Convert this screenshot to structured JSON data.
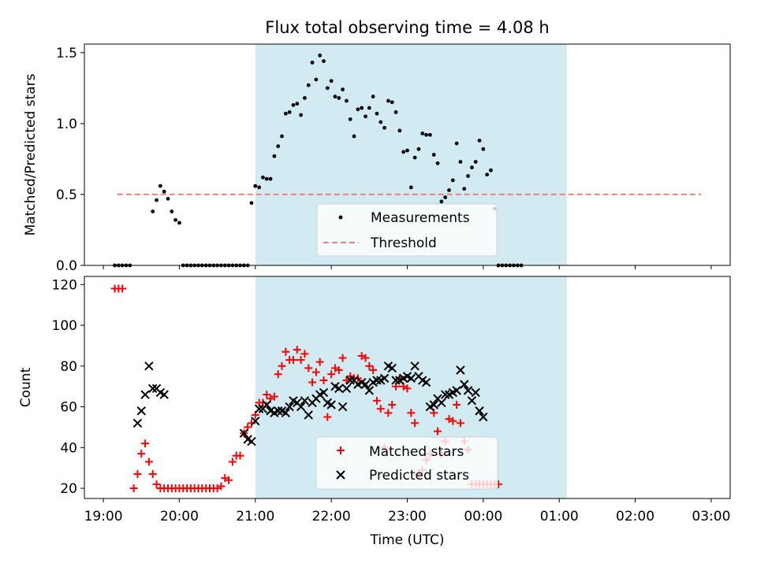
{
  "chart_data": [
    {
      "type": "scatter",
      "title": "Flux total observing time = 4.08 h",
      "xlabel": "",
      "ylabel": "Matched/Predicted stars",
      "ylim": [
        0,
        1.56
      ],
      "yticks": [
        "0.0",
        "0.5",
        "1.0",
        "1.5"
      ],
      "ytick_values": [
        0,
        0.5,
        1.0,
        1.5
      ],
      "shaded_region": {
        "start_min": 120,
        "end_min": 366,
        "color": "#add8e6"
      },
      "legend": {
        "placement": "lower center",
        "entries": [
          "Measurements",
          "Threshold"
        ]
      },
      "threshold": {
        "name": "Threshold",
        "value": 0.5,
        "x_start_min": 11,
        "x_end_min": 472,
        "color": "#f08080"
      },
      "series": [
        {
          "name": "Measurements",
          "color": "#000000",
          "x_min": [
            9,
            12,
            15,
            18,
            21,
            24,
            27,
            30,
            33,
            36,
            39,
            42,
            45,
            48,
            51,
            54,
            57,
            60,
            63,
            66,
            69,
            72,
            75,
            78,
            81,
            84,
            87,
            90,
            93,
            96,
            99,
            102,
            105,
            108,
            111,
            114,
            117,
            120,
            123,
            126,
            129,
            132,
            135,
            138,
            141,
            144,
            147,
            150,
            153,
            156,
            159,
            162,
            165,
            168,
            171,
            174,
            177,
            180,
            183,
            186,
            189,
            192,
            195,
            198,
            201,
            204,
            207,
            210,
            213,
            216,
            219,
            222,
            225,
            228,
            231,
            234,
            237,
            240,
            243,
            246,
            249,
            252,
            255,
            258,
            261,
            264,
            267,
            270,
            273,
            276,
            279,
            282,
            285,
            288,
            291,
            294,
            297,
            300,
            303,
            306,
            309,
            312,
            315,
            318,
            321,
            324,
            327,
            330,
            333,
            336,
            339,
            342,
            345,
            348,
            351,
            354,
            357,
            360,
            363,
            366,
            369,
            372,
            375,
            378,
            381,
            384,
            387,
            390,
            393,
            396,
            399,
            402,
            405,
            408,
            411,
            414,
            417,
            420,
            423,
            426,
            429,
            432,
            435,
            438,
            441,
            444,
            447,
            450,
            453,
            456,
            459,
            462,
            465,
            468
          ],
          "values": [
            0,
            0,
            0,
            0,
            0,
            null,
            null,
            null,
            null,
            null,
            0.38,
            0.46,
            0.56,
            0.52,
            0.47,
            0.38,
            0.32,
            0.3,
            0,
            0,
            0,
            0,
            0,
            0,
            0,
            0,
            0,
            0,
            0,
            0,
            0,
            0,
            0,
            0,
            0,
            0,
            0.44,
            0.56,
            0.55,
            0.62,
            0.61,
            0.61,
            0.77,
            0.84,
            0.91,
            1.07,
            1.08,
            1.13,
            1.14,
            1.06,
            1.18,
            1.27,
            1.43,
            1.31,
            1.48,
            1.44,
            1.25,
            1.3,
            1.19,
            1.18,
            1.24,
            1.16,
            1.03,
            0.91,
            1.1,
            1.11,
            1.05,
            1.11,
            1.19,
            1.07,
            1.01,
            0.97,
            1.16,
            1.15,
            1.08,
            0.95,
            0.8,
            0.81,
            0.55,
            0.76,
            0.82,
            0.93,
            0.92,
            0.92,
            0.78,
            0.72,
            0.45,
            0.48,
            0.53,
            0.6,
            0.86,
            0.73,
            0.54,
            0.63,
            0.69,
            0.73,
            0.88,
            0.82,
            0.64,
            0.67,
            0.4,
            0,
            0,
            0,
            0,
            0,
            0,
            0,
            null,
            null,
            null,
            null,
            null,
            null,
            null,
            null,
            null,
            null,
            null,
            null,
            null,
            null,
            null,
            null,
            null,
            null,
            null,
            null,
            null,
            null,
            null,
            null,
            null,
            null,
            null,
            null,
            null,
            null,
            null,
            null,
            null,
            null,
            null,
            null,
            null,
            null,
            null,
            null,
            null,
            null,
            null,
            null,
            null,
            null,
            null,
            null,
            null,
            null,
            null,
            null
          ]
        }
      ]
    },
    {
      "type": "scatter",
      "title": "",
      "xlabel": "Time (UTC)",
      "ylabel": "Count",
      "ylim": [
        15,
        124
      ],
      "yticks": [
        "20",
        "40",
        "60",
        "80",
        "100",
        "120"
      ],
      "ytick_values": [
        20,
        40,
        60,
        80,
        100,
        120
      ],
      "xticks": [
        "19:00",
        "20:00",
        "21:00",
        "22:00",
        "23:00",
        "00:00",
        "01:00",
        "02:00",
        "03:00"
      ],
      "xtick_min": [
        0,
        60,
        120,
        180,
        240,
        300,
        360,
        420,
        480
      ],
      "xlim_min": [
        -15,
        495
      ],
      "shaded_region": {
        "start_min": 120,
        "end_min": 366,
        "color": "#add8e6"
      },
      "legend": {
        "placement": "lower center",
        "entries": [
          "Matched stars",
          "Predicted stars"
        ]
      },
      "series": [
        {
          "name": "Matched stars",
          "marker": "+",
          "color": "#ff0000",
          "x_min": [
            9,
            12,
            15,
            18,
            21,
            24,
            27,
            30,
            33,
            36,
            39,
            42,
            45,
            48,
            51,
            54,
            57,
            60,
            63,
            66,
            69,
            72,
            75,
            78,
            81,
            84,
            87,
            90,
            93,
            96,
            99,
            102,
            105,
            108,
            111,
            114,
            117,
            120,
            123,
            126,
            129,
            132,
            135,
            138,
            141,
            144,
            147,
            150,
            153,
            156,
            159,
            162,
            165,
            168,
            171,
            174,
            177,
            180,
            183,
            186,
            189,
            192,
            195,
            198,
            201,
            204,
            207,
            210,
            213,
            216,
            219,
            222,
            225,
            228,
            231,
            234,
            237,
            240,
            243,
            246,
            249,
            252,
            255,
            258,
            261,
            264,
            267,
            270,
            273,
            276,
            279,
            282,
            285,
            288,
            291,
            294,
            297,
            300,
            303,
            306,
            309,
            312,
            315,
            318,
            321,
            324,
            327,
            330,
            333,
            336,
            339,
            342,
            345,
            348,
            351,
            354,
            357,
            360,
            363,
            366,
            369,
            372,
            375,
            378,
            381,
            384,
            387,
            390,
            393,
            396,
            399,
            402,
            405,
            408,
            411,
            414,
            417,
            420,
            423,
            426,
            429,
            432,
            435,
            438,
            441,
            444,
            447,
            450,
            453,
            456,
            459,
            462,
            465,
            468
          ],
          "values": [
            118,
            118,
            118,
            null,
            null,
            20,
            27,
            37,
            42,
            33,
            27,
            22,
            20,
            20,
            20,
            20,
            20,
            20,
            20,
            20,
            20,
            20,
            20,
            20,
            20,
            20,
            20,
            20,
            21,
            25,
            24,
            33,
            36,
            36,
            47,
            50,
            52,
            56,
            62,
            62,
            66,
            64,
            65,
            76,
            80,
            87,
            83,
            83,
            88,
            83,
            86,
            79,
            72,
            77,
            82,
            73,
            55,
            76,
            79,
            78,
            84,
            73,
            75,
            74,
            74,
            85,
            84,
            80,
            78,
            63,
            59,
            40,
            57,
            61,
            70,
            74,
            70,
            69,
            57,
            52,
            27,
            29,
            34,
            37,
            57,
            48,
            37,
            43,
            54,
            53,
            61,
            52,
            43,
            39,
            22,
            22,
            22,
            22,
            22,
            22,
            22,
            22,
            null,
            null,
            null,
            null,
            null,
            null,
            null,
            null,
            null,
            null,
            null,
            null,
            null,
            null,
            null,
            null,
            null,
            null,
            null,
            null,
            null,
            null,
            null,
            null,
            null,
            null,
            null,
            null,
            null,
            null,
            null,
            null,
            null,
            null,
            null,
            null,
            null,
            null,
            null,
            null,
            null,
            null,
            null,
            null,
            null,
            null,
            null,
            null,
            null,
            null,
            null,
            null,
            null,
            null,
            null,
            null,
            null,
            null,
            null,
            null,
            null,
            null,
            null,
            null,
            null,
            null,
            null,
            null,
            null
          ]
        },
        {
          "name": "Predicted stars",
          "marker": "x",
          "color": "#000000",
          "x_min": [
            27,
            30,
            33,
            36,
            39,
            42,
            45,
            48,
            111,
            114,
            117,
            120,
            123,
            126,
            129,
            132,
            135,
            138,
            141,
            144,
            147,
            150,
            153,
            156,
            159,
            162,
            165,
            168,
            171,
            174,
            177,
            180,
            183,
            186,
            189,
            192,
            195,
            198,
            201,
            204,
            207,
            210,
            213,
            216,
            219,
            222,
            225,
            228,
            231,
            234,
            237,
            240,
            243,
            246,
            249,
            252,
            255,
            258,
            261,
            264,
            267,
            270,
            273,
            276,
            279,
            282,
            285,
            288,
            291,
            294,
            297,
            300,
            303,
            306,
            309,
            312,
            315,
            318,
            321,
            324,
            327,
            330,
            333,
            336,
            339,
            342,
            345,
            348,
            351,
            354,
            357,
            360,
            363,
            366,
            369,
            372,
            375,
            378,
            381,
            384,
            387,
            390,
            393,
            396,
            399,
            402,
            405,
            408,
            411,
            414,
            417,
            420,
            423,
            426,
            429,
            432,
            435,
            438,
            441
          ],
          "values": [
            52,
            58,
            66,
            80,
            69,
            69,
            67,
            66,
            47,
            44,
            43,
            53,
            59,
            59,
            61,
            58,
            57,
            58,
            58,
            57,
            60,
            63,
            62,
            60,
            63,
            56,
            62,
            64,
            66,
            67,
            62,
            61,
            70,
            69,
            60,
            69,
            73,
            73,
            71,
            72,
            71,
            68,
            72,
            73,
            73,
            74,
            80,
            79,
            73,
            73,
            74,
            75,
            74,
            80,
            75,
            73,
            72,
            60,
            61,
            64,
            62,
            66,
            66,
            67,
            68,
            78,
            71,
            68,
            63,
            67,
            58,
            55,
            null,
            null,
            null,
            null,
            null,
            null,
            null,
            null,
            null,
            null,
            null,
            null,
            null,
            null,
            null,
            null,
            null,
            null,
            null,
            null,
            null,
            null,
            null,
            null,
            null,
            null,
            null,
            null,
            null,
            null,
            null,
            null,
            null,
            null,
            null,
            null,
            null,
            null,
            null,
            null,
            null,
            null,
            null,
            null,
            null,
            null,
            null,
            null
          ]
        }
      ]
    }
  ]
}
